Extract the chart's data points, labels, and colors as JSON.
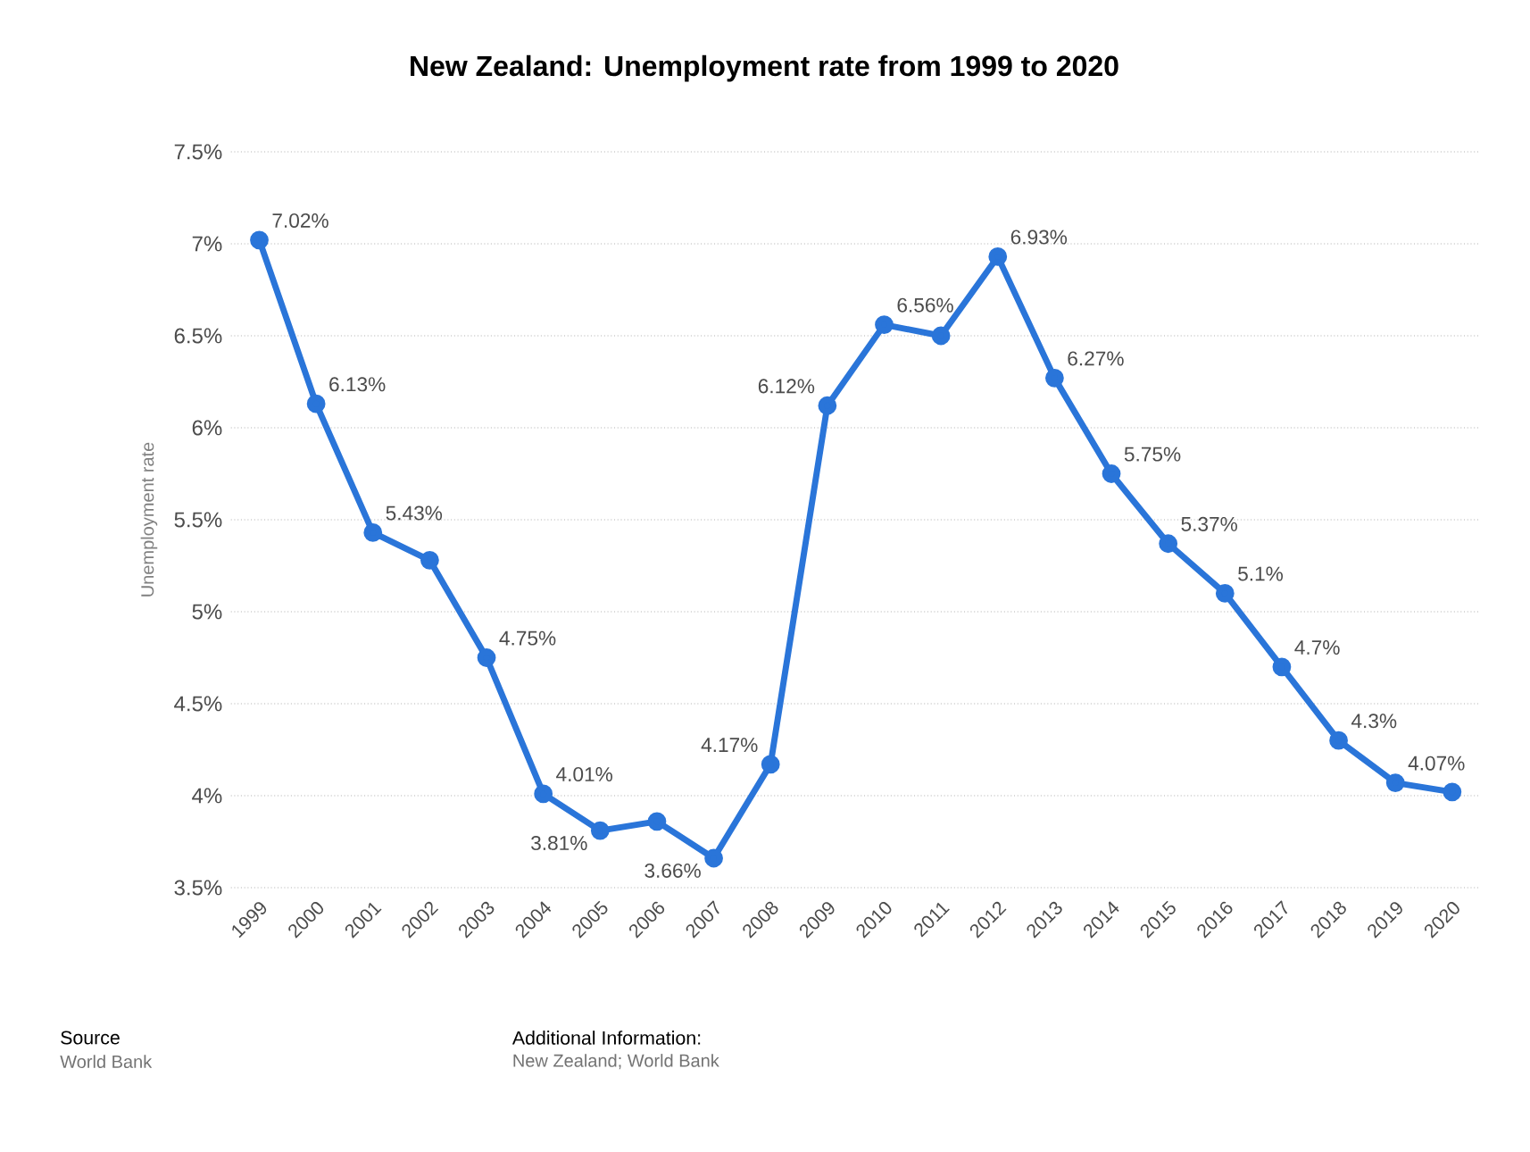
{
  "chart_data": {
    "type": "line",
    "title": "New Zealand: Unemployment rate from 1999 to 2020",
    "ylabel": "Unemployment rate",
    "categories": [
      "1999",
      "2000",
      "2001",
      "2002",
      "2003",
      "2004",
      "2005",
      "2006",
      "2007",
      "2008",
      "2009",
      "2010",
      "2011",
      "2012",
      "2013",
      "2014",
      "2015",
      "2016",
      "2017",
      "2018",
      "2019",
      "2020"
    ],
    "series": [
      {
        "color": "#2a75d9",
        "values": [
          7.02,
          6.13,
          5.43,
          5.28,
          4.75,
          4.01,
          3.81,
          3.86,
          3.66,
          4.17,
          6.12,
          6.56,
          6.5,
          6.93,
          6.27,
          5.75,
          5.37,
          5.1,
          4.7,
          4.3,
          4.07,
          4.02
        ],
        "value_labels": [
          "7.02%",
          "6.13%",
          "5.43%",
          null,
          "4.75%",
          "4.01%",
          "3.81%",
          null,
          "3.66%",
          "4.17%",
          "6.12%",
          "6.56%",
          null,
          "6.93%",
          "6.27%",
          "5.75%",
          "5.37%",
          "5.1%",
          "4.7%",
          "4.3%",
          "4.07%",
          null
        ]
      }
    ],
    "ylim": [
      3.5,
      7.5
    ],
    "yticks": [
      {
        "value": 3.5,
        "label": "3.5%"
      },
      {
        "value": 4,
        "label": "4%"
      },
      {
        "value": 4.5,
        "label": "4.5%"
      },
      {
        "value": 5,
        "label": "5%"
      },
      {
        "value": 5.5,
        "label": "5.5%"
      },
      {
        "value": 6,
        "label": "6%"
      },
      {
        "value": 6.5,
        "label": "6.5%"
      },
      {
        "value": 7,
        "label": "7%"
      },
      {
        "value": 7.5,
        "label": "7.5%"
      }
    ],
    "grid": "y",
    "marker": "circle",
    "line_style": "solid",
    "annotations": [
      "Source",
      "World Bank",
      "Additional Information:",
      "New Zealand; World Bank"
    ]
  }
}
